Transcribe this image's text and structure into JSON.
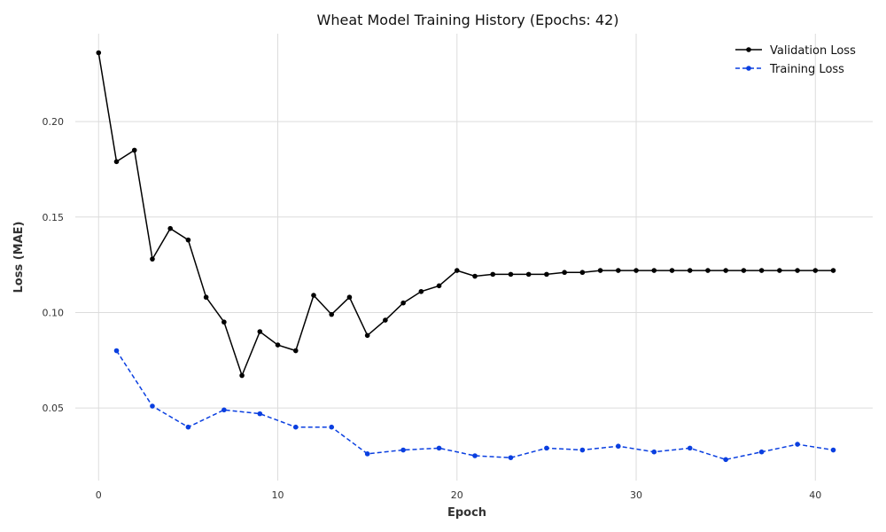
{
  "chart_data": {
    "type": "line",
    "title": "Wheat Model Training History (Epochs: 42)",
    "xlabel": "Epoch",
    "ylabel": "Loss (MAE)",
    "xlim": [
      -1.3,
      43.2
    ],
    "ylim": [
      0.012,
      0.246
    ],
    "xticks": [
      0,
      10,
      20,
      30,
      40
    ],
    "yticks": [
      0.05,
      0.1,
      0.15,
      0.2
    ],
    "ytick_labels": [
      "0.05",
      "0.10",
      "0.15",
      "0.20"
    ],
    "grid": true,
    "legend_position": "top-right",
    "series": [
      {
        "name": "Validation Loss",
        "color": "#000000",
        "dash": "solid",
        "x": [
          0,
          1,
          2,
          3,
          4,
          5,
          6,
          7,
          8,
          9,
          10,
          11,
          12,
          13,
          14,
          15,
          16,
          17,
          18,
          19,
          20,
          21,
          22,
          23,
          24,
          25,
          26,
          27,
          28,
          29,
          30,
          31,
          32,
          33,
          34,
          35,
          36,
          37,
          38,
          39,
          40,
          41
        ],
        "y": [
          0.236,
          0.179,
          0.185,
          0.128,
          0.144,
          0.138,
          0.108,
          0.095,
          0.067,
          0.09,
          0.083,
          0.08,
          0.109,
          0.099,
          0.108,
          0.088,
          0.096,
          0.105,
          0.111,
          0.114,
          0.122,
          0.119,
          0.12,
          0.12,
          0.12,
          0.12,
          0.121,
          0.121,
          0.122,
          0.122,
          0.122,
          0.122,
          0.122,
          0.122,
          0.122,
          0.122,
          0.122,
          0.122,
          0.122,
          0.122,
          0.122,
          0.122
        ]
      },
      {
        "name": "Training Loss",
        "color": "#0a3fe0",
        "dash": "dashed",
        "x": [
          1,
          3,
          5,
          7,
          9,
          11,
          13,
          15,
          17,
          19,
          21,
          23,
          25,
          27,
          29,
          31,
          33,
          35,
          37,
          39,
          41
        ],
        "y": [
          0.08,
          0.051,
          0.04,
          0.049,
          0.047,
          0.04,
          0.04,
          0.026,
          0.028,
          0.029,
          0.025,
          0.024,
          0.029,
          0.028,
          0.03,
          0.027,
          0.029,
          0.023,
          0.027,
          0.031,
          0.028
        ]
      }
    ]
  }
}
